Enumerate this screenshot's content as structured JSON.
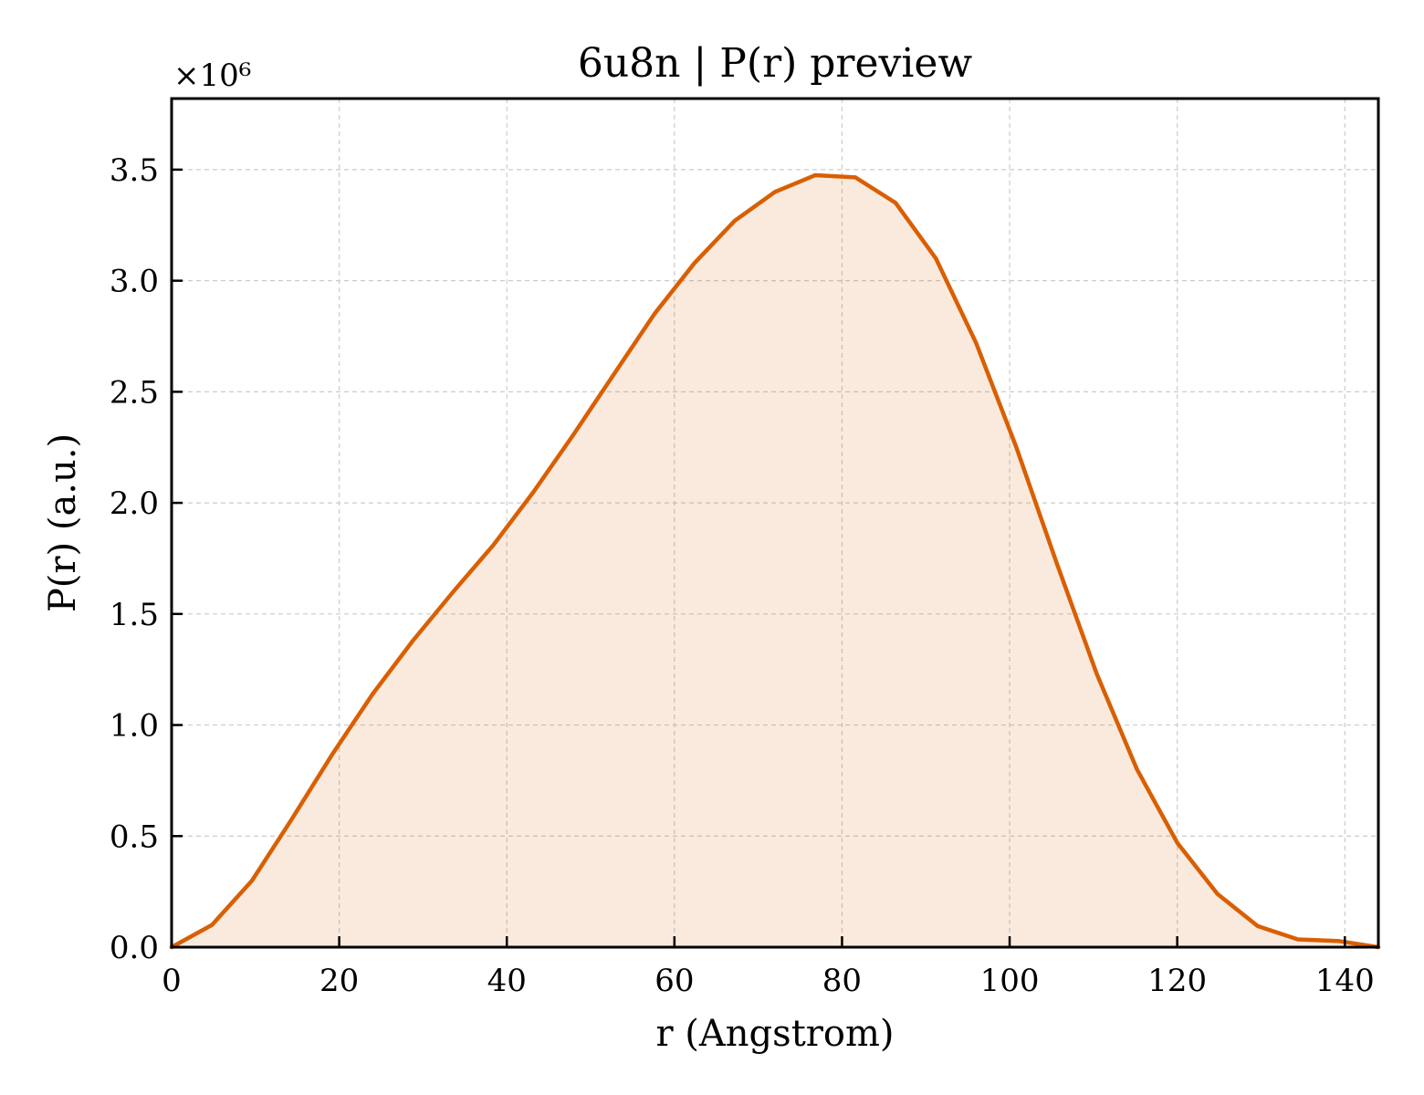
{
  "chart_data": {
    "type": "area",
    "title": "6u8n | P(r) preview",
    "xlabel": "r (Angstrom)",
    "ylabel": "P(r) (a.u.)",
    "y_offset_text": "×10⁶",
    "y_scale": 1000000,
    "xlim": [
      0,
      144
    ],
    "ylim": [
      0,
      3.82
    ],
    "grid": true,
    "xticks": [
      0,
      20,
      40,
      60,
      80,
      100,
      120,
      140
    ],
    "xtick_labels": [
      "0",
      "20",
      "40",
      "60",
      "80",
      "100",
      "120",
      "140"
    ],
    "yticks": [
      0.0,
      0.5,
      1.0,
      1.5,
      2.0,
      2.5,
      3.0,
      3.5
    ],
    "ytick_labels": [
      "0.0",
      "0.5",
      "1.0",
      "1.5",
      "2.0",
      "2.5",
      "3.0",
      "3.5"
    ],
    "series": [
      {
        "color": "#d95f02",
        "fill_color": "#d95f02",
        "fill_opacity": 0.13,
        "x": [
          0,
          4.8,
          9.6,
          14.4,
          19.2,
          24.0,
          28.8,
          33.6,
          38.4,
          43.2,
          48.0,
          52.8,
          57.6,
          62.4,
          67.2,
          72.0,
          76.8,
          81.6,
          86.4,
          91.2,
          96.0,
          100.8,
          105.6,
          110.4,
          115.2,
          120.0,
          124.8,
          129.6,
          134.4,
          139.2,
          144.0
        ],
        "y": [
          0.0,
          0.1,
          0.3,
          0.58,
          0.87,
          1.14,
          1.38,
          1.6,
          1.81,
          2.05,
          2.31,
          2.58,
          2.85,
          3.08,
          3.27,
          3.4,
          3.475,
          3.465,
          3.35,
          3.1,
          2.72,
          2.25,
          1.73,
          1.23,
          0.8,
          0.47,
          0.24,
          0.095,
          0.035,
          0.028,
          0.0
        ]
      }
    ]
  }
}
